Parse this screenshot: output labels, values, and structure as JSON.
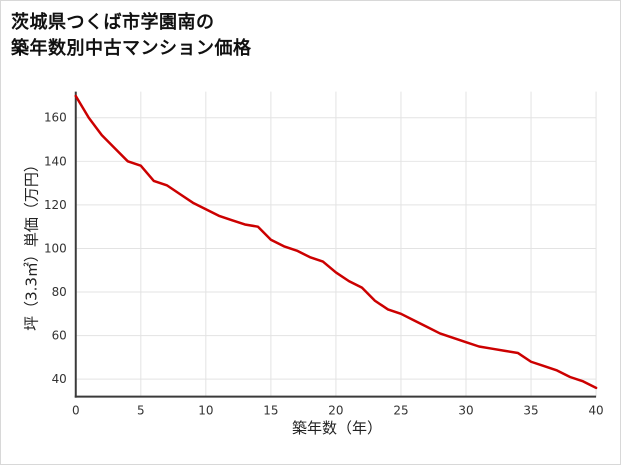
{
  "title": {
    "line1": "茨城県つくば市学園南の",
    "line2": "築年数別中古マンション価格"
  },
  "chart_data": {
    "type": "line",
    "title": "茨城県つくば市学園南の築年数別中古マンション価格",
    "xlabel": "築年数（年）",
    "ylabel": "坪（3.3㎡）単価（万円）",
    "x": [
      0,
      1,
      2,
      3,
      4,
      5,
      6,
      7,
      8,
      9,
      10,
      11,
      12,
      13,
      14,
      15,
      16,
      17,
      18,
      19,
      20,
      21,
      22,
      23,
      24,
      25,
      26,
      27,
      28,
      29,
      30,
      31,
      32,
      33,
      34,
      35,
      36,
      37,
      38,
      39,
      40
    ],
    "values": [
      170,
      160,
      152,
      146,
      140,
      138,
      131,
      129,
      125,
      121,
      118,
      115,
      113,
      111,
      110,
      104,
      101,
      99,
      96,
      94,
      89,
      85,
      82,
      76,
      72,
      70,
      67,
      64,
      61,
      59,
      57,
      55,
      54,
      53,
      52,
      48,
      46,
      44,
      41,
      39,
      36
    ],
    "xlim": [
      0,
      40
    ],
    "ylim": [
      32,
      172
    ],
    "xticks": [
      0,
      5,
      10,
      15,
      20,
      25,
      30,
      35,
      40
    ],
    "yticks": [
      40,
      60,
      80,
      100,
      120,
      140,
      160
    ],
    "grid": true,
    "legend": false,
    "line_color": "#cc0000",
    "grid_color": "#e3e3e3",
    "axis_color": "#3a3a3a",
    "tick_color": "#333333"
  }
}
